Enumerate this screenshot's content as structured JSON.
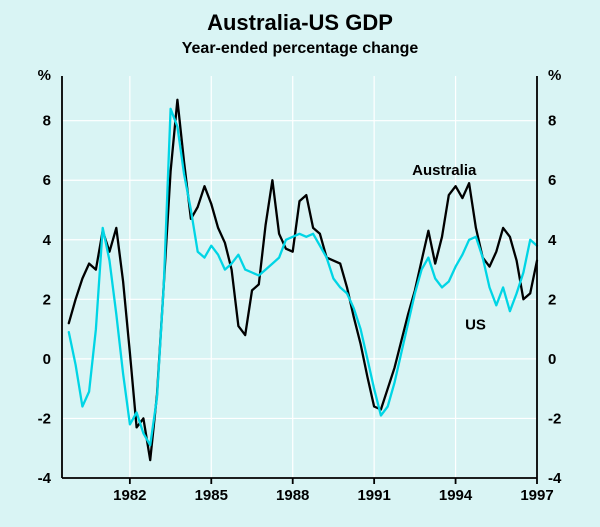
{
  "title": "Australia-US GDP",
  "subtitle": "Year-ended percentage change",
  "colors": {
    "background": "#d9f4f4",
    "grid": "#ffffff",
    "axis": "#000000",
    "text": "#000000",
    "australia": "#000000",
    "us": "#00d5e5"
  },
  "chart_data": {
    "type": "line",
    "title": "Australia-US GDP",
    "subtitle": "Year-ended percentage change",
    "x_start": 1979.75,
    "x_step": 0.25,
    "x_axis": {
      "min": 1979.5,
      "max": 1997.0,
      "ticks": [
        1982,
        1985,
        1988,
        1991,
        1994,
        1997
      ]
    },
    "y_axis": {
      "min": -4,
      "max": 9.5,
      "ticks": [
        -4,
        -2,
        0,
        2,
        4,
        6,
        8
      ],
      "unit": "%"
    },
    "grid": true,
    "legend_position": "inline-labels",
    "series": [
      {
        "name": "Australia",
        "color_key": "australia",
        "values": [
          1.2,
          2.0,
          2.7,
          3.2,
          3.0,
          4.3,
          3.6,
          4.4,
          2.6,
          0.2,
          -2.3,
          -2.0,
          -3.4,
          -1.2,
          2.5,
          6.3,
          8.7,
          6.6,
          4.7,
          5.1,
          5.8,
          5.2,
          4.4,
          3.9,
          3.0,
          1.1,
          0.8,
          2.3,
          2.5,
          4.5,
          6.0,
          4.2,
          3.7,
          3.6,
          5.3,
          5.5,
          4.4,
          4.2,
          3.4,
          3.3,
          3.2,
          2.4,
          1.4,
          0.5,
          -0.6,
          -1.6,
          -1.7,
          -1.0,
          -0.3,
          0.6,
          1.5,
          2.3,
          3.3,
          4.3,
          3.2,
          4.1,
          5.5,
          5.8,
          5.4,
          5.9,
          4.4,
          3.4,
          3.1,
          3.6,
          4.4,
          4.1,
          3.3,
          2.0,
          2.2,
          3.3
        ]
      },
      {
        "name": "US",
        "color_key": "us",
        "values": [
          0.9,
          -0.2,
          -1.6,
          -1.1,
          1.0,
          4.4,
          3.3,
          1.5,
          -0.5,
          -2.2,
          -1.8,
          -2.5,
          -2.9,
          -1.3,
          2.5,
          8.4,
          7.8,
          6.2,
          5.0,
          3.6,
          3.4,
          3.8,
          3.5,
          3.0,
          3.2,
          3.5,
          3.0,
          2.9,
          2.8,
          3.0,
          3.2,
          3.4,
          4.0,
          4.1,
          4.2,
          4.1,
          4.2,
          3.8,
          3.4,
          2.7,
          2.4,
          2.2,
          1.7,
          1.0,
          0.0,
          -1.0,
          -1.9,
          -1.6,
          -0.8,
          0.2,
          1.2,
          2.2,
          3.0,
          3.4,
          2.7,
          2.4,
          2.6,
          3.1,
          3.5,
          4.0,
          4.1,
          3.4,
          2.4,
          1.8,
          2.4,
          1.6,
          2.2,
          2.9,
          4.0,
          3.8
        ]
      }
    ],
    "annotations": [
      {
        "text": "Australia",
        "x": 1992.4,
        "y": 6.35
      },
      {
        "text": "US",
        "x": 1994.35,
        "y": 1.15
      }
    ]
  }
}
